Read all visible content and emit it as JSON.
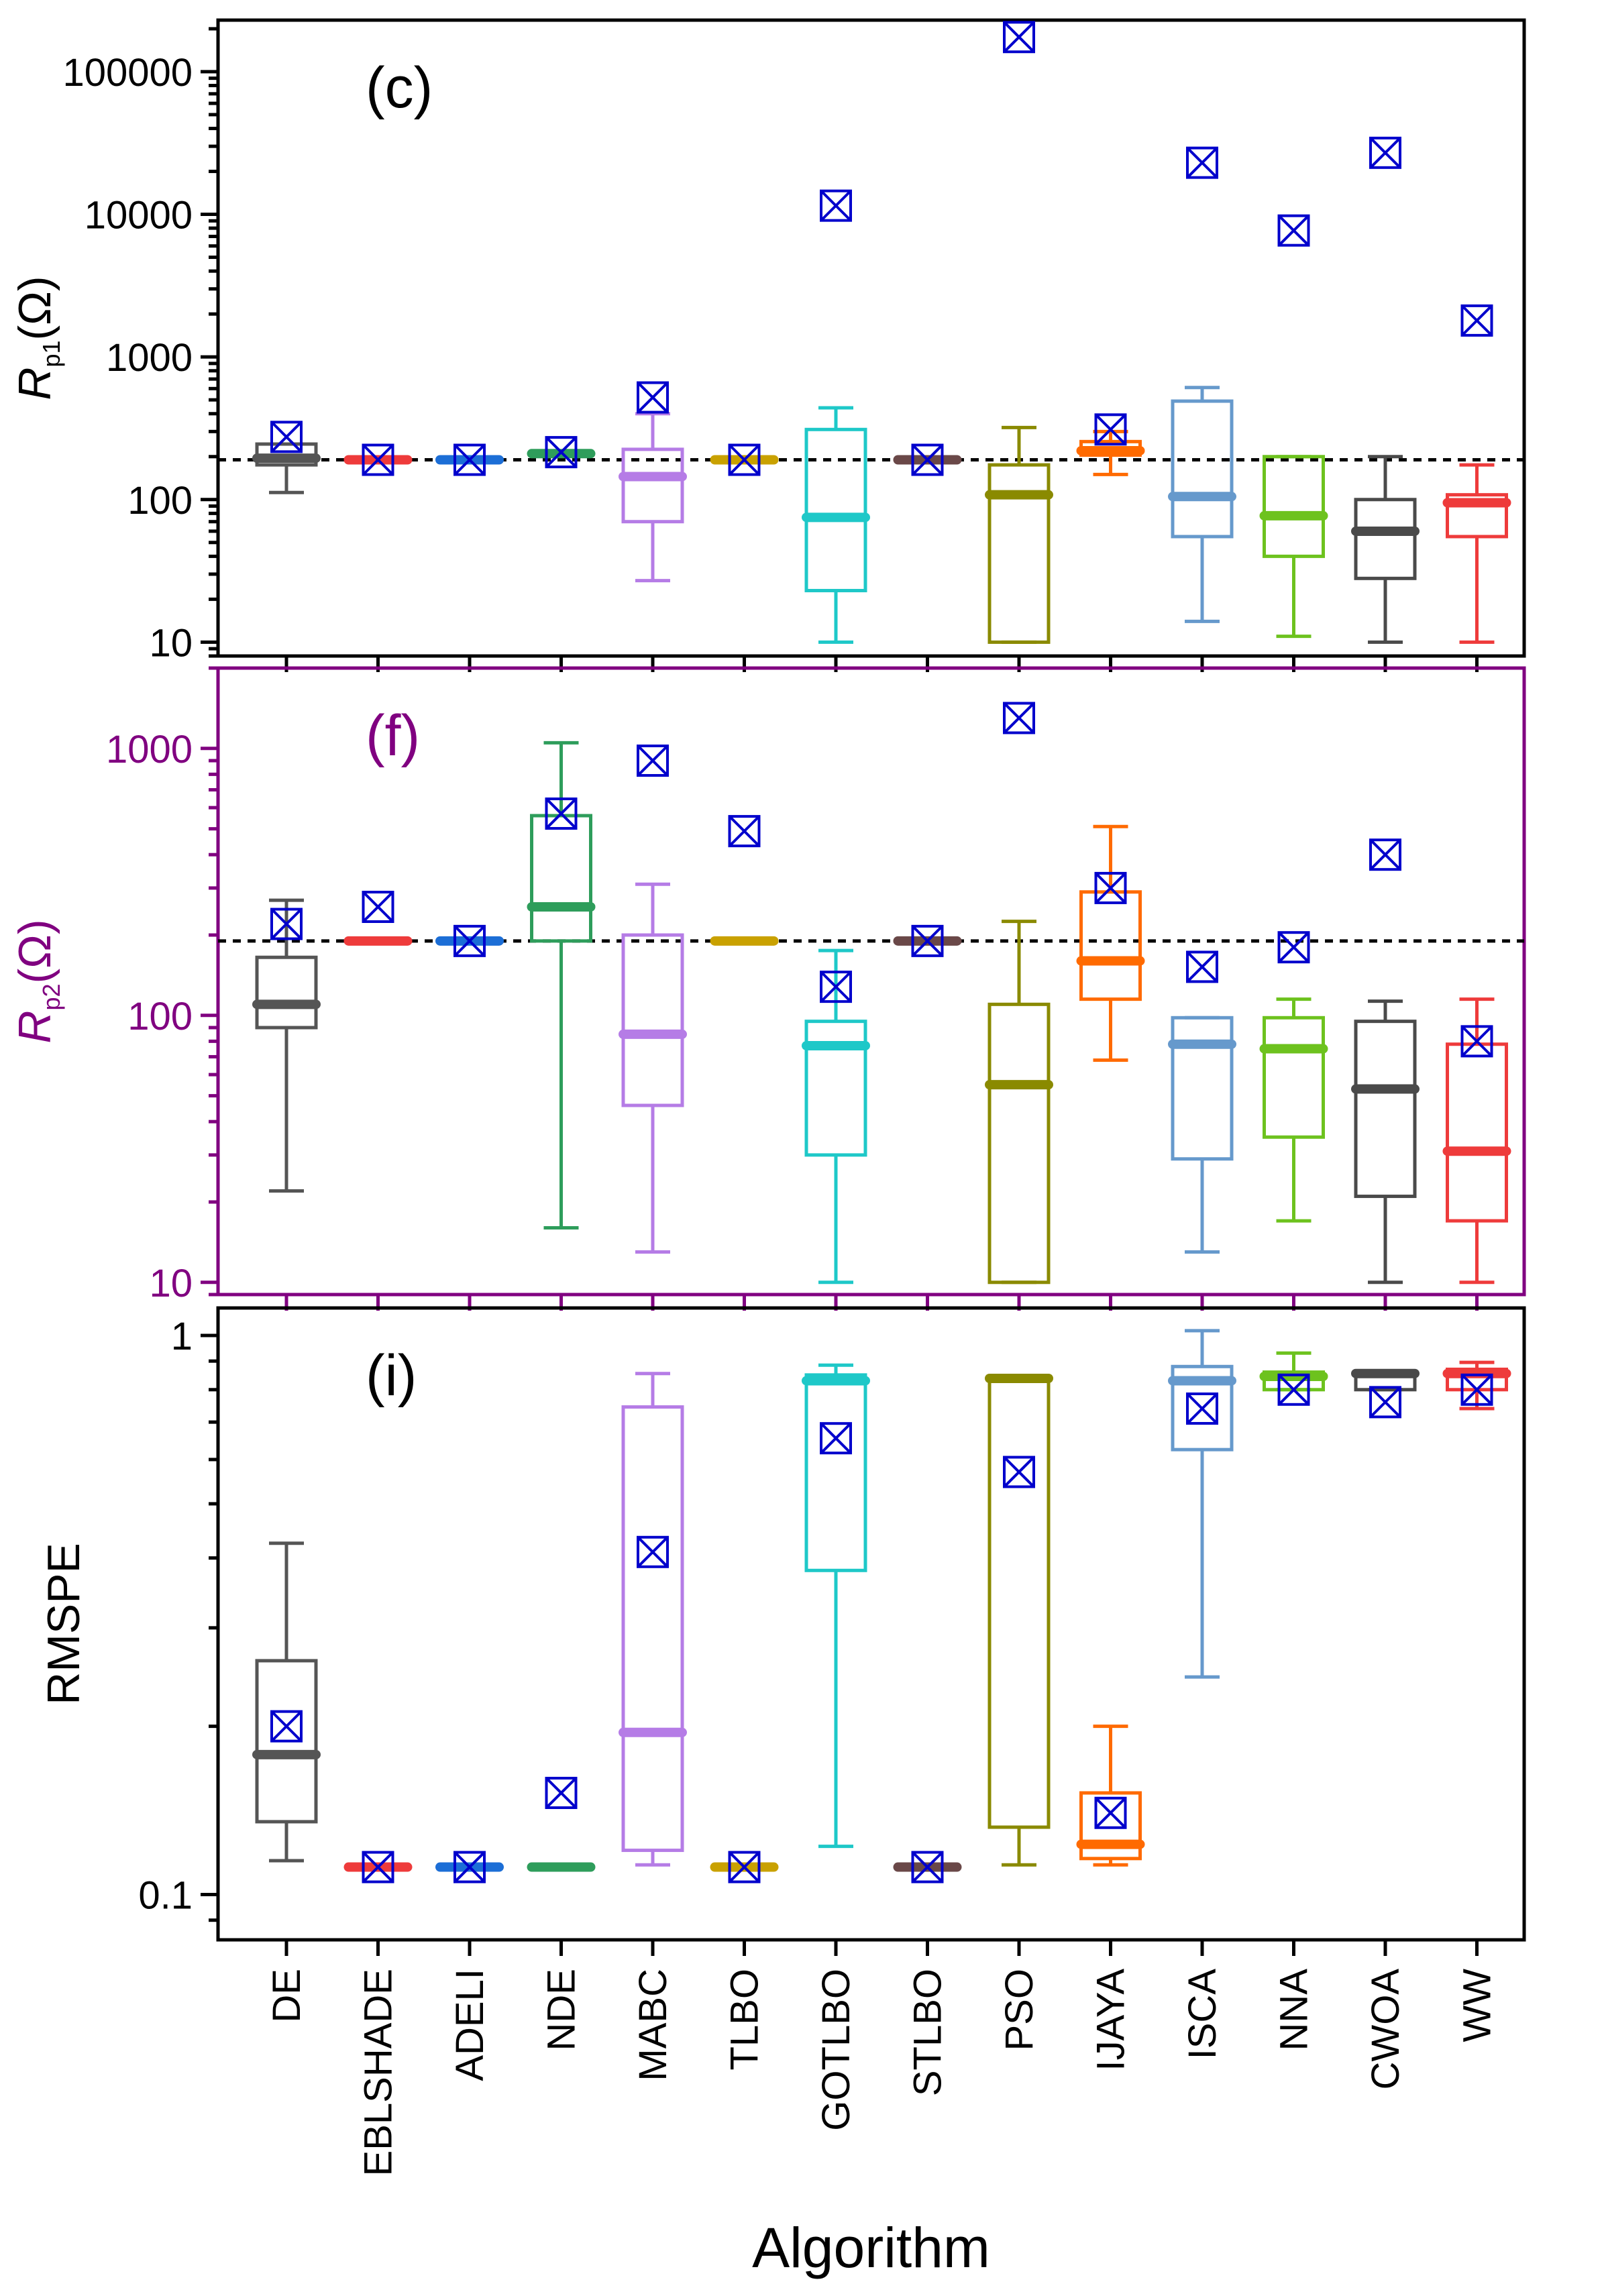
{
  "colors": {
    "DE": "#555555",
    "EBLSHADE": "#ee3b3b",
    "ADELI": "#1c6ed6",
    "NDE": "#2e9d5b",
    "MABC": "#b57ce6",
    "TLBO": "#c9a100",
    "GOTLBO": "#1ec8c8",
    "STLBO": "#6a4848",
    "PSO": "#8a8a00",
    "IJAYA": "#ff6a00",
    "ISCA": "#6699cc",
    "NNA": "#6dc21e",
    "CWOA": "#4a4a4a",
    "WW": "#ee3b3b",
    "marker": "#0000cc",
    "panel_f_frame": "#800080"
  },
  "chart_data": [
    {
      "type": "box",
      "panel_label": "(c)",
      "ylabel_main": "R",
      "ylabel_sub": "p1",
      "ylabel_unit": "(Ω)",
      "yscale": "log",
      "ylim": [
        8,
        230000
      ],
      "yticks": [
        "10",
        "100",
        "1000",
        "10000",
        "100000"
      ],
      "reference_line": 190,
      "categories": [
        "DE",
        "EBLSHADE",
        "ADELI",
        "NDE",
        "MABC",
        "TLBO",
        "GOTLBO",
        "STLBO",
        "PSO",
        "IJAYA",
        "ISCA",
        "NNA",
        "CWOA",
        "WW"
      ],
      "boxes": [
        {
          "min": 112,
          "q1": 175,
          "median": 195,
          "q3": 245,
          "max": 245,
          "mean": 275
        },
        {
          "min": 190,
          "q1": 190,
          "median": 190,
          "q3": 190,
          "max": 190,
          "mean": 190
        },
        {
          "min": 190,
          "q1": 190,
          "median": 190,
          "q3": 190,
          "max": 190,
          "mean": 190
        },
        {
          "min": 210,
          "q1": 210,
          "median": 210,
          "q3": 210,
          "max": 210,
          "mean": 215
        },
        {
          "min": 27,
          "q1": 70,
          "median": 145,
          "q3": 225,
          "max": 400,
          "mean": 520
        },
        {
          "min": 190,
          "q1": 190,
          "median": 190,
          "q3": 190,
          "max": 190,
          "mean": 190
        },
        {
          "min": 10,
          "q1": 23,
          "median": 75,
          "q3": 310,
          "max": 440,
          "mean": 11500
        },
        {
          "min": 190,
          "q1": 190,
          "median": 190,
          "q3": 190,
          "max": 190,
          "mean": 190
        },
        {
          "min": 10,
          "q1": 10,
          "median": 108,
          "q3": 175,
          "max": 320,
          "mean": 175000
        },
        {
          "min": 150,
          "q1": 205,
          "median": 220,
          "q3": 255,
          "max": 300,
          "mean": 310
        },
        {
          "min": 14,
          "q1": 55,
          "median": 105,
          "q3": 490,
          "max": 610,
          "mean": 23000
        },
        {
          "min": 11,
          "q1": 40,
          "median": 77,
          "q3": 200,
          "max": 200,
          "mean": 7700
        },
        {
          "min": 10,
          "q1": 28,
          "median": 60,
          "q3": 100,
          "max": 200,
          "mean": 27000
        },
        {
          "min": 10,
          "q1": 55,
          "median": 95,
          "q3": 108,
          "max": 175,
          "mean": 1800
        }
      ]
    },
    {
      "type": "box",
      "panel_label": "(f)",
      "ylabel_main": "R",
      "ylabel_sub": "p2",
      "ylabel_unit": "(Ω)",
      "yscale": "log",
      "ylim": [
        9,
        2000
      ],
      "yticks": [
        "10",
        "100",
        "1000"
      ],
      "reference_line": 190,
      "categories": [
        "DE",
        "EBLSHADE",
        "ADELI",
        "NDE",
        "MABC",
        "TLBO",
        "GOTLBO",
        "STLBO",
        "PSO",
        "IJAYA",
        "ISCA",
        "NNA",
        "CWOA",
        "WW"
      ],
      "boxes": [
        {
          "min": 22,
          "q1": 90,
          "median": 110,
          "q3": 165,
          "max": 270,
          "mean": 220
        },
        {
          "min": 190,
          "q1": 190,
          "median": 190,
          "q3": 190,
          "max": 190,
          "mean": 255
        },
        {
          "min": 190,
          "q1": 190,
          "median": 190,
          "q3": 190,
          "max": 190,
          "mean": 190
        },
        {
          "min": 16,
          "q1": 190,
          "median": 255,
          "q3": 560,
          "max": 1050,
          "mean": 570
        },
        {
          "min": 13,
          "q1": 46,
          "median": 85,
          "q3": 200,
          "max": 310,
          "mean": 900
        },
        {
          "min": 190,
          "q1": 190,
          "median": 190,
          "q3": 190,
          "max": 190,
          "mean": 490
        },
        {
          "min": 10,
          "q1": 30,
          "median": 77,
          "q3": 95,
          "max": 175,
          "mean": 128
        },
        {
          "min": 190,
          "q1": 190,
          "median": 190,
          "q3": 190,
          "max": 190,
          "mean": 190
        },
        {
          "min": 10,
          "q1": 10,
          "median": 55,
          "q3": 110,
          "max": 225,
          "mean": 1300
        },
        {
          "min": 68,
          "q1": 115,
          "median": 160,
          "q3": 290,
          "max": 510,
          "mean": 300
        },
        {
          "min": 13,
          "q1": 29,
          "median": 78,
          "q3": 98,
          "max": 98,
          "mean": 152
        },
        {
          "min": 17,
          "q1": 35,
          "median": 75,
          "q3": 98,
          "max": 115,
          "mean": 180
        },
        {
          "min": 10,
          "q1": 21,
          "median": 53,
          "q3": 95,
          "max": 113,
          "mean": 400
        },
        {
          "min": 10,
          "q1": 17,
          "median": 31,
          "q3": 78,
          "max": 115,
          "mean": 80
        }
      ]
    },
    {
      "type": "box",
      "panel_label": "(i)",
      "ylabel_main": "RMSPE",
      "yscale": "log",
      "ylim": [
        0.083,
        1.12
      ],
      "yticks": [
        "0.1",
        "1"
      ],
      "categories": [
        "DE",
        "EBLSHADE",
        "ADELI",
        "NDE",
        "MABC",
        "TLBO",
        "GOTLBO",
        "STLBO",
        "PSO",
        "IJAYA",
        "ISCA",
        "NNA",
        "CWOA",
        "WW"
      ],
      "xlabel": "Algorithm",
      "boxes": [
        {
          "min": 0.115,
          "q1": 0.135,
          "median": 0.178,
          "q3": 0.262,
          "max": 0.425,
          "mean": 0.2
        },
        {
          "min": 0.112,
          "q1": 0.112,
          "median": 0.112,
          "q3": 0.112,
          "max": 0.112,
          "mean": 0.112
        },
        {
          "min": 0.112,
          "q1": 0.112,
          "median": 0.112,
          "q3": 0.112,
          "max": 0.112,
          "mean": 0.112
        },
        {
          "min": 0.112,
          "q1": 0.112,
          "median": 0.112,
          "q3": 0.112,
          "max": 0.112,
          "mean": 0.152
        },
        {
          "min": 0.113,
          "q1": 0.12,
          "median": 0.195,
          "q3": 0.745,
          "max": 0.855,
          "mean": 0.41
        },
        {
          "min": 0.112,
          "q1": 0.112,
          "median": 0.112,
          "q3": 0.112,
          "max": 0.112,
          "mean": 0.112
        },
        {
          "min": 0.122,
          "q1": 0.38,
          "median": 0.83,
          "q3": 0.85,
          "max": 0.885,
          "mean": 0.655
        },
        {
          "min": 0.112,
          "q1": 0.112,
          "median": 0.112,
          "q3": 0.112,
          "max": 0.112,
          "mean": 0.112
        },
        {
          "min": 0.113,
          "q1": 0.132,
          "median": 0.838,
          "q3": 0.838,
          "max": 0.838,
          "mean": 0.57
        },
        {
          "min": 0.113,
          "q1": 0.116,
          "median": 0.123,
          "q3": 0.152,
          "max": 0.2,
          "mean": 0.14
        },
        {
          "min": 0.245,
          "q1": 0.625,
          "median": 0.83,
          "q3": 0.88,
          "max": 1.02,
          "mean": 0.74
        },
        {
          "min": 0.8,
          "q1": 0.8,
          "median": 0.845,
          "q3": 0.86,
          "max": 0.93,
          "mean": 0.8
        },
        {
          "min": 0.8,
          "q1": 0.8,
          "median": 0.855,
          "q3": 0.855,
          "max": 0.855,
          "mean": 0.76
        },
        {
          "min": 0.74,
          "q1": 0.8,
          "median": 0.855,
          "q3": 0.87,
          "max": 0.895,
          "mean": 0.8
        }
      ]
    }
  ]
}
